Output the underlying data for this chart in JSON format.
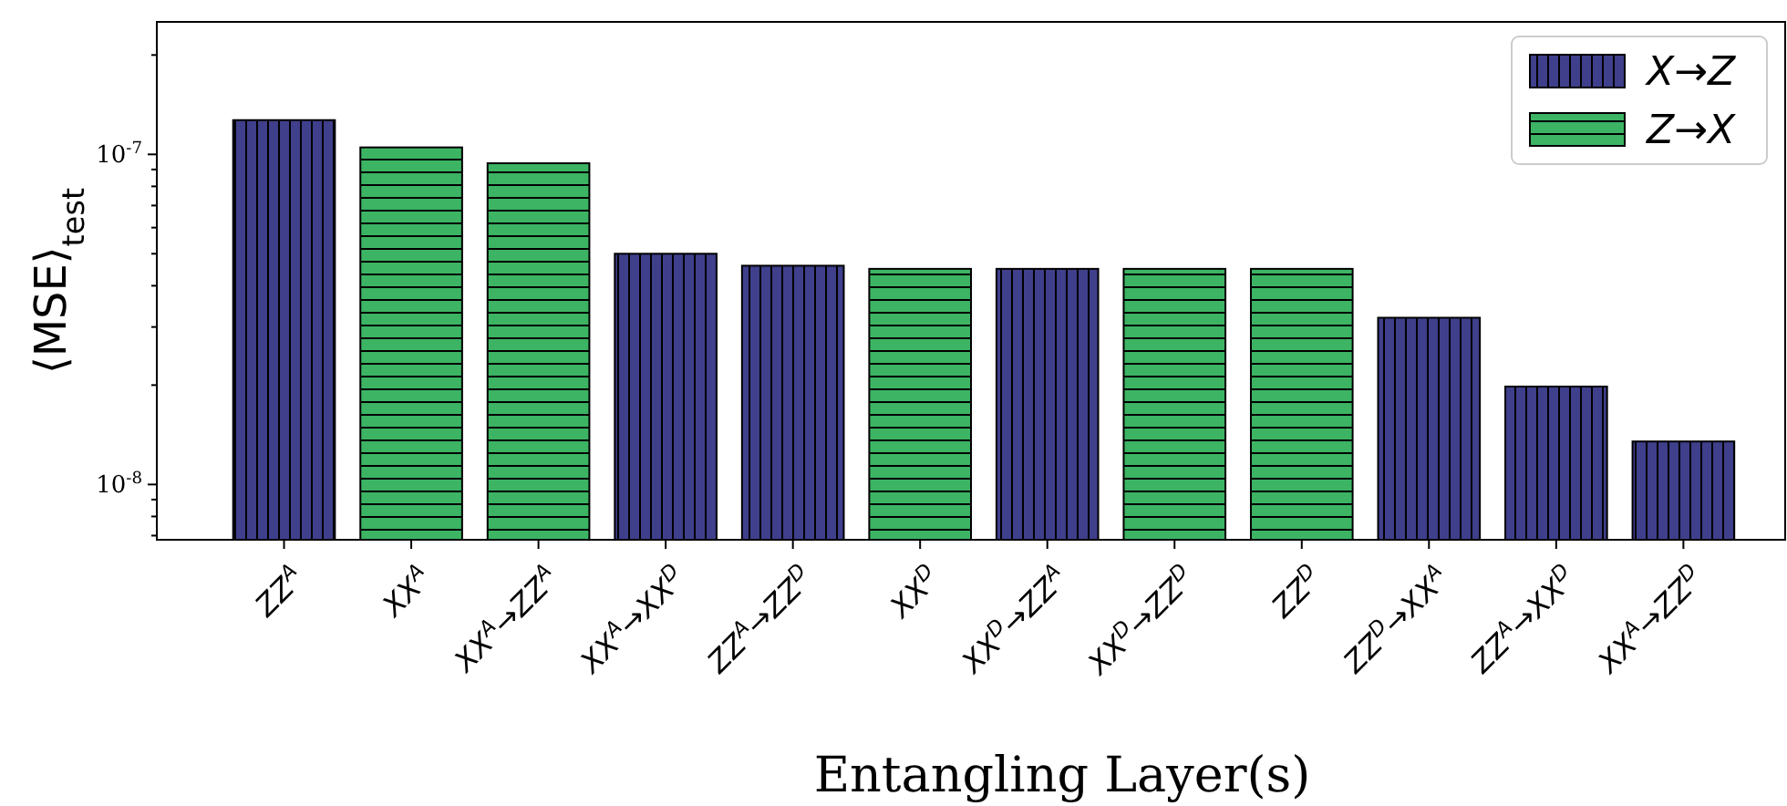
{
  "chart_data": {
    "type": "bar",
    "xlabel": "Entangling Layer(s)",
    "ylabel": "⟨MSE⟩$_{test}$",
    "categories": [
      "ZZ$^{A}$",
      "XX$^{A}$",
      "XX$^{A}$→ZZ$^{A}$",
      "XX$^{A}$→XX$^{D}$",
      "ZZ$^{A}$→ZZ$^{D}$",
      "XX$^{D}$",
      "XX$^{D}$→ZZ$^{A}$",
      "XX$^{D}$→ZZ$^{D}$",
      "ZZ$^{D}$",
      "ZZ$^{D}$→XX$^{A}$",
      "ZZ$^{A}$→XX$^{D}$",
      "XX$^{A}$→ZZ$^{D}$"
    ],
    "series": [
      {
        "name": "X→Z",
        "color": "#3f3f8c",
        "values": [
          1.27e-07,
          null,
          null,
          5e-08,
          4.6e-08,
          null,
          4.5e-08,
          null,
          null,
          3.2e-08,
          1.98e-08,
          1.35e-08
        ]
      },
      {
        "name": "Z→X",
        "color": "#3cb464",
        "values": [
          null,
          1.05e-07,
          9.4e-08,
          null,
          null,
          4.5e-08,
          null,
          4.5e-08,
          4.5e-08,
          null,
          null,
          null
        ]
      }
    ],
    "log": "y",
    "ylim": [
      6.8e-09,
      2.52e-07
    ],
    "yticks": [
      {
        "value": 7e-09,
        "label": null
      },
      {
        "value": 8e-09,
        "label": null
      },
      {
        "value": 9e-09,
        "label": null
      },
      {
        "value": 1e-08,
        "label": "10$^{-8}$"
      },
      {
        "value": 2e-08,
        "label": null
      },
      {
        "value": 3e-08,
        "label": null
      },
      {
        "value": 4e-08,
        "label": null
      },
      {
        "value": 5e-08,
        "label": null
      },
      {
        "value": 6e-08,
        "label": null
      },
      {
        "value": 7e-08,
        "label": null
      },
      {
        "value": 8e-08,
        "label": null
      },
      {
        "value": 9e-08,
        "label": null
      },
      {
        "value": 1e-07,
        "label": "10$^{-7}$"
      },
      {
        "value": 2e-07,
        "label": null
      }
    ],
    "grid": false,
    "legend": "top right"
  }
}
